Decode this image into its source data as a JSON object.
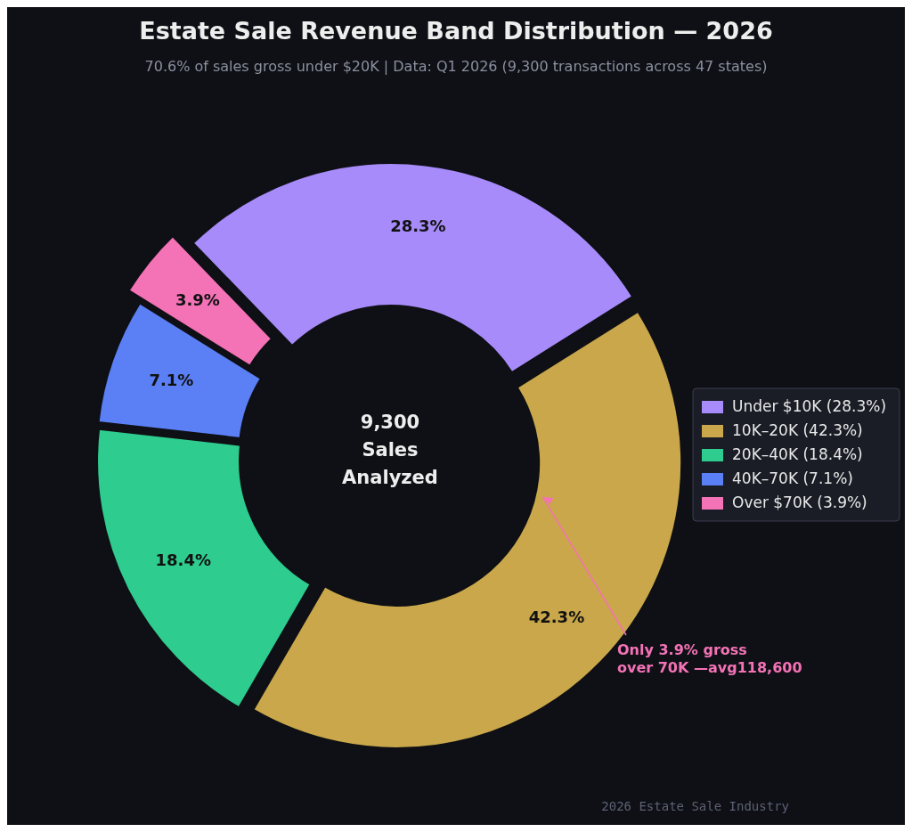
{
  "chart_data": {
    "type": "donut",
    "title": "Estate Sale Revenue Band Distribution — 2026",
    "subtitle": "70.6% of sales gross under $20K  |  Data: Q1 2026 (9,300 transactions across 47 states)",
    "categories": [
      "Under $10K  (28.3%)",
      "10K–20K  (42.3%)",
      "20K–40K  (18.4%)",
      "40K–70K  (7.1%)",
      "Over $70K  (3.9%)"
    ],
    "values": [
      28.3,
      42.3,
      18.4,
      7.1,
      3.9
    ],
    "colors": [
      "#a78bfa",
      "#c9a74a",
      "#2ecc8e",
      "#5b7ff5",
      "#f472b6"
    ],
    "value_labels": [
      "28.3%",
      "42.3%",
      "18.4%",
      "7.1%",
      "3.9%"
    ],
    "legend": "right",
    "annotations": [
      "9,300\nSales\nAnalyzed",
      "Only 3.9% gross\nover 70K —avg118,600",
      "2026 Estate Sale Industry"
    ]
  }
}
